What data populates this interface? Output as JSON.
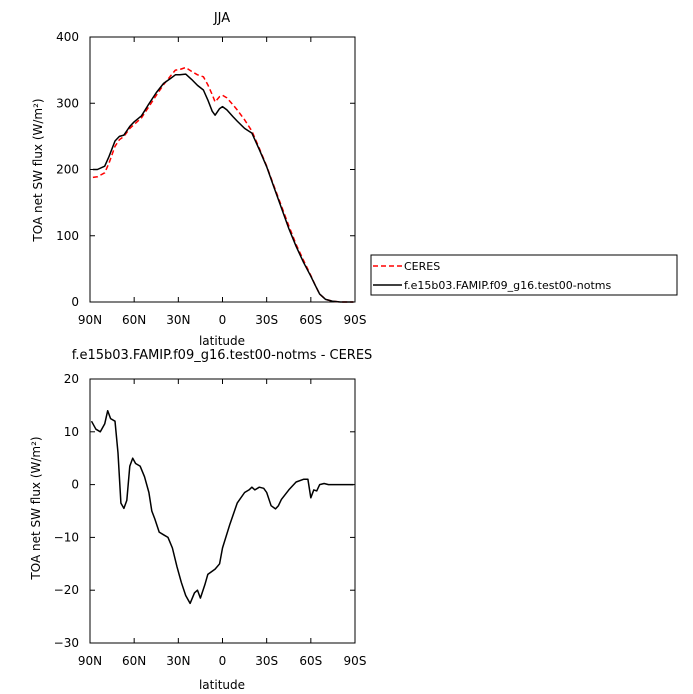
{
  "chart_data": [
    {
      "type": "line",
      "title": "JJA",
      "xlabel": "latitude",
      "ylabel": "TOA net SW flux (W/m²)",
      "xlim": [
        90,
        -90
      ],
      "ylim": [
        0,
        400
      ],
      "x_ticks": [
        90,
        60,
        30,
        0,
        -30,
        -60,
        -90
      ],
      "x_tick_labels": [
        "90N",
        "60N",
        "30N",
        "0",
        "30S",
        "60S",
        "90S"
      ],
      "y_ticks": [
        0,
        100,
        200,
        300,
        400
      ],
      "y_tick_labels": [
        "0",
        "100",
        "200",
        "300",
        "400"
      ],
      "grid": false,
      "legend_position": "right",
      "series": [
        {
          "name": "CERES",
          "color": "#ff0000",
          "dash": "dashed",
          "points": [
            [
              88,
              188
            ],
            [
              85,
              189
            ],
            [
              80,
              195
            ],
            [
              77,
              210
            ],
            [
              73,
              235
            ],
            [
              70,
              245
            ],
            [
              67,
              250
            ],
            [
              63,
              262
            ],
            [
              60,
              268
            ],
            [
              55,
              278
            ],
            [
              50,
              295
            ],
            [
              45,
              312
            ],
            [
              40,
              328
            ],
            [
              35,
              342
            ],
            [
              32,
              350
            ],
            [
              29,
              351
            ],
            [
              25,
              354
            ],
            [
              21,
              348
            ],
            [
              17,
              343
            ],
            [
              13,
              340
            ],
            [
              10,
              328
            ],
            [
              7,
              313
            ],
            [
              5,
              302
            ],
            [
              2,
              310
            ],
            [
              0,
              312
            ],
            [
              -3,
              308
            ],
            [
              -7,
              298
            ],
            [
              -10,
              290
            ],
            [
              -15,
              275
            ],
            [
              -20,
              258
            ],
            [
              -25,
              232
            ],
            [
              -30,
              205
            ],
            [
              -35,
              175
            ],
            [
              -40,
              145
            ],
            [
              -45,
              115
            ],
            [
              -50,
              87
            ],
            [
              -55,
              63
            ],
            [
              -60,
              40
            ],
            [
              -63,
              25
            ],
            [
              -66,
              12
            ],
            [
              -70,
              4
            ],
            [
              -75,
              1
            ],
            [
              -80,
              0
            ],
            [
              -85,
              0
            ],
            [
              -89,
              0
            ]
          ]
        },
        {
          "name": "f.e15b03.FAMIP.f09_g16.test00-notms",
          "color": "#000000",
          "dash": "solid",
          "points": [
            [
              88,
              200
            ],
            [
              85,
              200
            ],
            [
              80,
              205
            ],
            [
              77,
              220
            ],
            [
              73,
              243
            ],
            [
              70,
              250
            ],
            [
              67,
              252
            ],
            [
              63,
              265
            ],
            [
              60,
              272
            ],
            [
              55,
              281
            ],
            [
              50,
              299
            ],
            [
              45,
              316
            ],
            [
              40,
              330
            ],
            [
              35,
              338
            ],
            [
              32,
              343
            ],
            [
              29,
              343
            ],
            [
              25,
              344
            ],
            [
              21,
              336
            ],
            [
              17,
              327
            ],
            [
              13,
              320
            ],
            [
              10,
              305
            ],
            [
              7,
              288
            ],
            [
              5,
              282
            ],
            [
              2,
              292
            ],
            [
              0,
              295
            ],
            [
              -3,
              290
            ],
            [
              -7,
              280
            ],
            [
              -10,
              273
            ],
            [
              -15,
              262
            ],
            [
              -20,
              255
            ],
            [
              -25,
              230
            ],
            [
              -30,
              204
            ],
            [
              -35,
              173
            ],
            [
              -40,
              142
            ],
            [
              -45,
              111
            ],
            [
              -50,
              84
            ],
            [
              -55,
              60
            ],
            [
              -60,
              39
            ],
            [
              -63,
              25
            ],
            [
              -66,
              12
            ],
            [
              -70,
              4
            ],
            [
              -75,
              1
            ],
            [
              -80,
              0
            ],
            [
              -85,
              0
            ],
            [
              -89,
              0
            ]
          ]
        }
      ]
    },
    {
      "type": "line",
      "title": "f.e15b03.FAMIP.f09_g16.test00-notms - CERES",
      "xlabel": "latitude",
      "ylabel": "TOA net SW flux (W/m²)",
      "xlim": [
        90,
        -90
      ],
      "ylim": [
        -30,
        20
      ],
      "x_ticks": [
        90,
        60,
        30,
        0,
        -30,
        -60,
        -90
      ],
      "x_tick_labels": [
        "90N",
        "60N",
        "30N",
        "0",
        "30S",
        "60S",
        "90S"
      ],
      "y_ticks": [
        -30,
        -20,
        -10,
        0,
        10,
        20
      ],
      "y_tick_labels": [
        "−30",
        "−20",
        "−10",
        "0",
        "10",
        "20"
      ],
      "grid": false,
      "series": [
        {
          "color": "#000000",
          "dash": "solid",
          "points": [
            [
              89,
              12
            ],
            [
              86,
              10.5
            ],
            [
              83,
              10
            ],
            [
              80,
              11.5
            ],
            [
              78,
              14
            ],
            [
              76,
              12.5
            ],
            [
              73,
              12
            ],
            [
              71,
              6
            ],
            [
              69,
              -3.5
            ],
            [
              67,
              -4.5
            ],
            [
              65,
              -3
            ],
            [
              63,
              3.5
            ],
            [
              61,
              5
            ],
            [
              59,
              4
            ],
            [
              56,
              3.5
            ],
            [
              53,
              1.5
            ],
            [
              50,
              -1.5
            ],
            [
              48,
              -5
            ],
            [
              46,
              -6.5
            ],
            [
              43,
              -9
            ],
            [
              40,
              -9.5
            ],
            [
              37,
              -10
            ],
            [
              34,
              -12
            ],
            [
              31,
              -15.5
            ],
            [
              28,
              -18.5
            ],
            [
              25,
              -21
            ],
            [
              22,
              -22.5
            ],
            [
              19,
              -20.5
            ],
            [
              17,
              -20
            ],
            [
              15,
              -21.5
            ],
            [
              12,
              -19
            ],
            [
              10,
              -17
            ],
            [
              5,
              -16
            ],
            [
              2,
              -15
            ],
            [
              0,
              -12
            ],
            [
              -5,
              -7.5
            ],
            [
              -10,
              -3.5
            ],
            [
              -15,
              -1.5
            ],
            [
              -18,
              -1
            ],
            [
              -20,
              -0.5
            ],
            [
              -22,
              -1
            ],
            [
              -25,
              -0.5
            ],
            [
              -28,
              -0.7
            ],
            [
              -30,
              -1.5
            ],
            [
              -33,
              -4
            ],
            [
              -36,
              -4.6
            ],
            [
              -38,
              -4
            ],
            [
              -40,
              -2.8
            ],
            [
              -45,
              -1
            ],
            [
              -50,
              0.5
            ],
            [
              -55,
              1
            ],
            [
              -58,
              1
            ],
            [
              -60,
              -2.5
            ],
            [
              -62,
              -1
            ],
            [
              -64,
              -1.2
            ],
            [
              -66,
              0
            ],
            [
              -69,
              0.2
            ],
            [
              -72,
              0
            ],
            [
              -76,
              0
            ],
            [
              -80,
              0
            ],
            [
              -85,
              0
            ],
            [
              -89,
              0
            ]
          ]
        }
      ]
    }
  ]
}
